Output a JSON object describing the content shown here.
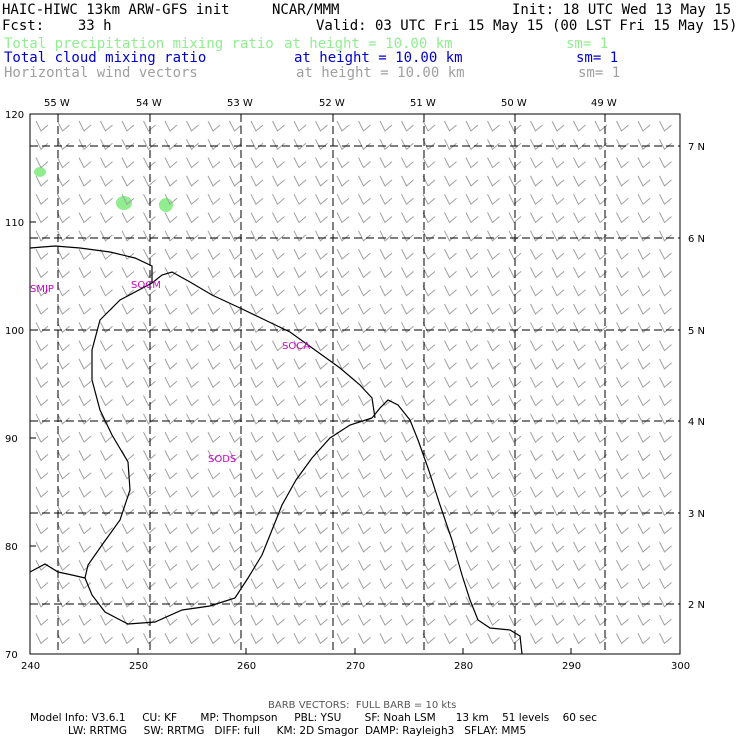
{
  "header": {
    "model": "HAIC-HIWC 13km ARW-GFS init",
    "org": "NCAR/MMM",
    "init": "Init: 18 UTC Wed 13 May 15",
    "fcst": "Fcst:    33 h",
    "valid": "Valid: 03 UTC Fri 15 May 15 (00 LST Fri 15 May 15)",
    "fields": [
      {
        "name": "Total precipitation mixing ratio",
        "height": "at height = 10.00 km",
        "sm": "sm= 1",
        "color": "#90ee90"
      },
      {
        "name": "Total cloud mixing ratio",
        "height": "at height = 10.00 km",
        "sm": "sm= 1",
        "color": "#0000cd"
      },
      {
        "name": "Horizontal wind vectors",
        "height": "at height = 10.00 km",
        "sm": "sm= 1",
        "color": "#a0a0a0"
      }
    ]
  },
  "map": {
    "top_labels": [
      "55 W",
      "54 W",
      "53 W",
      "52 W",
      "51 W",
      "50 W",
      "49 W"
    ],
    "right_labels": [
      "7 N",
      "6 N",
      "5 N",
      "4 N",
      "3 N",
      "2 N"
    ],
    "y_ticks": [
      "120",
      "110",
      "100",
      "90",
      "80",
      "70"
    ],
    "x_ticks": [
      "240",
      "250",
      "260",
      "270",
      "280",
      "290",
      "300"
    ],
    "stations": [
      {
        "id": "SMJP",
        "color": "#cc00cc"
      },
      {
        "id": "SOCM",
        "color": "#cc00cc"
      },
      {
        "id": "SOCA",
        "color": "#cc00cc"
      },
      {
        "id": "SODS",
        "color": "#cc00cc"
      }
    ],
    "precip_color": "#90ee90",
    "barb_color": "#a0a0a0",
    "wind": {
      "direction": "northeasterly",
      "barbs": "full barbs, approx 10 kts"
    }
  },
  "footer": {
    "barb_note": "BARB VECTORS:  FULL BARB = 10 kts",
    "line1": "Model Info: V3.6.1     CU: KF       MP: Thompson     PBL: YSU       SF: Noah LSM      13 km    51 levels    60 sec",
    "line2": "LW: RRTMG     SW: RRTMG   DIFF: full     KM: 2D Smagor  DAMP: Rayleigh3   SFLAY: MM5"
  }
}
